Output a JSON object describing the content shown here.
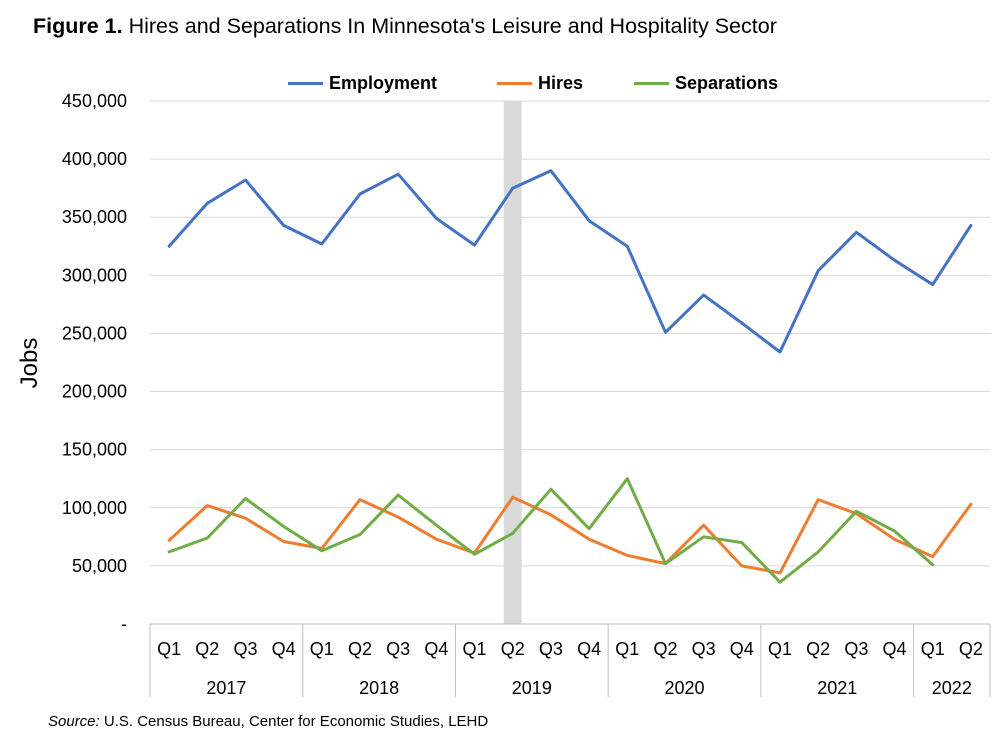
{
  "title": {
    "prefix": "Figure 1.",
    "text": "Hires and Separations In Minnesota's Leisure and Hospitality Sector"
  },
  "source": {
    "label": "Source:",
    "text": "U.S. Census Bureau, Center for Economic Studies, LEHD"
  },
  "chart_data": {
    "type": "line",
    "title": "Figure 1. Hires and Separations In Minnesota's Leisure and Hospitality Sector",
    "ylabel": "Jobs",
    "xlabel": "",
    "ylim": [
      0,
      450000
    ],
    "yticks": [
      0,
      50000,
      100000,
      150000,
      200000,
      250000,
      300000,
      350000,
      400000,
      450000
    ],
    "ytick_labels": [
      "-",
      "50,000",
      "100,000",
      "150,000",
      "200,000",
      "250,000",
      "300,000",
      "350,000",
      "400,000",
      "450,000"
    ],
    "grid": true,
    "legend_position": "top",
    "shaded_category_index": 9,
    "shaded_color": "#d9d9d9",
    "categories": [
      "Q1",
      "Q2",
      "Q3",
      "Q4",
      "Q1",
      "Q2",
      "Q3",
      "Q4",
      "Q1",
      "Q2",
      "Q3",
      "Q4",
      "Q1",
      "Q2",
      "Q3",
      "Q4",
      "Q1",
      "Q2",
      "Q3",
      "Q4",
      "Q1",
      "Q2"
    ],
    "groups": [
      {
        "label": "2017",
        "count": 4
      },
      {
        "label": "2018",
        "count": 4
      },
      {
        "label": "2019",
        "count": 4
      },
      {
        "label": "2020",
        "count": 4
      },
      {
        "label": "2021",
        "count": 4
      },
      {
        "label": "2022",
        "count": 2
      }
    ],
    "series": [
      {
        "name": "Employment",
        "color": "#4472c4",
        "values": [
          325000,
          362000,
          382000,
          343000,
          327000,
          370000,
          387000,
          349000,
          326000,
          375000,
          390000,
          347000,
          325000,
          251000,
          283000,
          259000,
          234000,
          304000,
          337000,
          313000,
          292000,
          343000
        ]
      },
      {
        "name": "Hires",
        "color": "#ed7d31",
        "values": [
          72000,
          102000,
          91000,
          71000,
          65000,
          107000,
          92000,
          73000,
          61000,
          109000,
          94000,
          73000,
          59000,
          52000,
          85000,
          50000,
          44000,
          107000,
          95000,
          73000,
          58000,
          103000
        ]
      },
      {
        "name": "Separations",
        "color": "#70ad47",
        "values": [
          62000,
          74000,
          108000,
          84000,
          63000,
          77000,
          111000,
          85000,
          60000,
          78000,
          116000,
          82000,
          125000,
          52000,
          75000,
          70000,
          36000,
          62000,
          97000,
          80000,
          51000,
          null
        ]
      }
    ]
  }
}
